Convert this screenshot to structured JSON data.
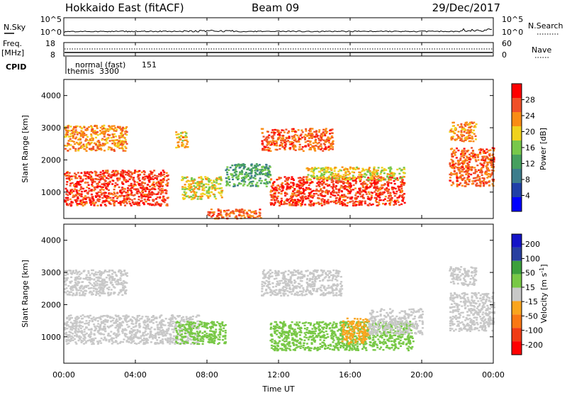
{
  "header": {
    "radar": "Hokkaido East (fitACF)",
    "beam": "Beam 09",
    "date": "29/Dec/2017"
  },
  "noise_panel": {
    "left_label": "N.Sky",
    "right_label": "N.Search",
    "tick_top_left": "10^5",
    "tick_bottom_left": "10^0",
    "tick_top_right": "10^5",
    "tick_bottom_right": "10^0"
  },
  "freq_panel": {
    "left_label_1": "Freq.",
    "left_label_2": "[MHz]",
    "right_label": "Nave",
    "left_ticks": [
      "18",
      "8"
    ],
    "right_ticks": [
      "60",
      "0"
    ]
  },
  "cpid_panel": {
    "label": "CPID",
    "program_1": "normal (fast)",
    "program_1_id": "151",
    "program_2": "themis",
    "program_2_id": "3300"
  },
  "x_axis": {
    "label": "Time UT",
    "ticks": [
      "00:00",
      "04:00",
      "08:00",
      "12:00",
      "16:00",
      "20:00",
      "00:00"
    ]
  },
  "colors": {
    "power": [
      "#0000ff",
      "#1f3fa8",
      "#3d7d8c",
      "#46a05f",
      "#78c84b",
      "#f0d21e",
      "#fa8c14",
      "#f05028",
      "#ff0000"
    ],
    "velocity": [
      "#ff0000",
      "#f03c14",
      "#fa7814",
      "#faa51e",
      "#c8c8c8",
      "#78c846",
      "#3ca03c",
      "#2840a0",
      "#1414c8"
    ],
    "ground_scatter": "#c8c8c8"
  },
  "chart_data": [
    {
      "type": "heatmap",
      "title": "Power",
      "xlabel": "Time UT",
      "ylabel": "Slant Range [km]",
      "xlim": [
        0,
        24
      ],
      "ylim": [
        180,
        4500
      ],
      "yticks": [
        1000,
        2000,
        3000,
        4000
      ],
      "colorbar": {
        "label": "Power [dB]",
        "ticks": [
          "4",
          "8",
          "12",
          "16",
          "20",
          "24",
          "28"
        ],
        "range": [
          0,
          30
        ]
      },
      "regions": [
        {
          "t0": 0.0,
          "t1": 5.8,
          "r0": 600,
          "r1": 1700,
          "value": 26
        },
        {
          "t0": 0.0,
          "t1": 3.5,
          "r0": 2300,
          "r1": 3100,
          "value": 22
        },
        {
          "t0": 6.2,
          "t1": 6.9,
          "r0": 2400,
          "r1": 2900,
          "value": 20
        },
        {
          "t0": 6.5,
          "t1": 8.8,
          "r0": 800,
          "r1": 1500,
          "value": 18
        },
        {
          "t0": 8.0,
          "t1": 11.0,
          "r0": 200,
          "r1": 500,
          "value": 24
        },
        {
          "t0": 9.0,
          "t1": 11.5,
          "r0": 1200,
          "r1": 1900,
          "value": 12
        },
        {
          "t0": 11.0,
          "t1": 15.0,
          "r0": 2300,
          "r1": 3000,
          "value": 24
        },
        {
          "t0": 11.5,
          "t1": 19.0,
          "r0": 600,
          "r1": 1500,
          "value": 26
        },
        {
          "t0": 13.5,
          "t1": 19.0,
          "r0": 1400,
          "r1": 1800,
          "value": 18
        },
        {
          "t0": 21.5,
          "t1": 24.0,
          "r0": 1200,
          "r1": 2400,
          "value": 24
        },
        {
          "t0": 21.5,
          "t1": 23.0,
          "r0": 2600,
          "r1": 3200,
          "value": 22
        }
      ]
    },
    {
      "type": "heatmap",
      "title": "Velocity",
      "xlabel": "Time UT",
      "ylabel": "Slant Range [km]",
      "xlim": [
        0,
        24
      ],
      "ylim": [
        180,
        4500
      ],
      "yticks": [
        1000,
        2000,
        3000,
        4000
      ],
      "colorbar": {
        "label": "Velocity [m s^-1]",
        "ticks": [
          "200",
          "100",
          "50",
          "15",
          "-15",
          "-50",
          "-100",
          "-200"
        ],
        "range": [
          -250,
          250
        ]
      },
      "regions": [
        {
          "t0": 0.0,
          "t1": 7.5,
          "r0": 800,
          "r1": 1700,
          "value": 0
        },
        {
          "t0": 0.0,
          "t1": 3.5,
          "r0": 2300,
          "r1": 3100,
          "value": 0
        },
        {
          "t0": 6.2,
          "t1": 9.0,
          "r0": 800,
          "r1": 1500,
          "value": 60
        },
        {
          "t0": 11.0,
          "t1": 15.5,
          "r0": 2300,
          "r1": 3100,
          "value": 0
        },
        {
          "t0": 11.5,
          "t1": 19.5,
          "r0": 600,
          "r1": 1500,
          "value": 40
        },
        {
          "t0": 15.5,
          "t1": 17.0,
          "r0": 800,
          "r1": 1600,
          "value": -60
        },
        {
          "t0": 17.0,
          "t1": 20.0,
          "r0": 1100,
          "r1": 1900,
          "value": 0
        },
        {
          "t0": 21.5,
          "t1": 24.0,
          "r0": 1200,
          "r1": 2400,
          "value": 0
        },
        {
          "t0": 21.5,
          "t1": 23.0,
          "r0": 2600,
          "r1": 3200,
          "value": 0
        }
      ]
    }
  ]
}
